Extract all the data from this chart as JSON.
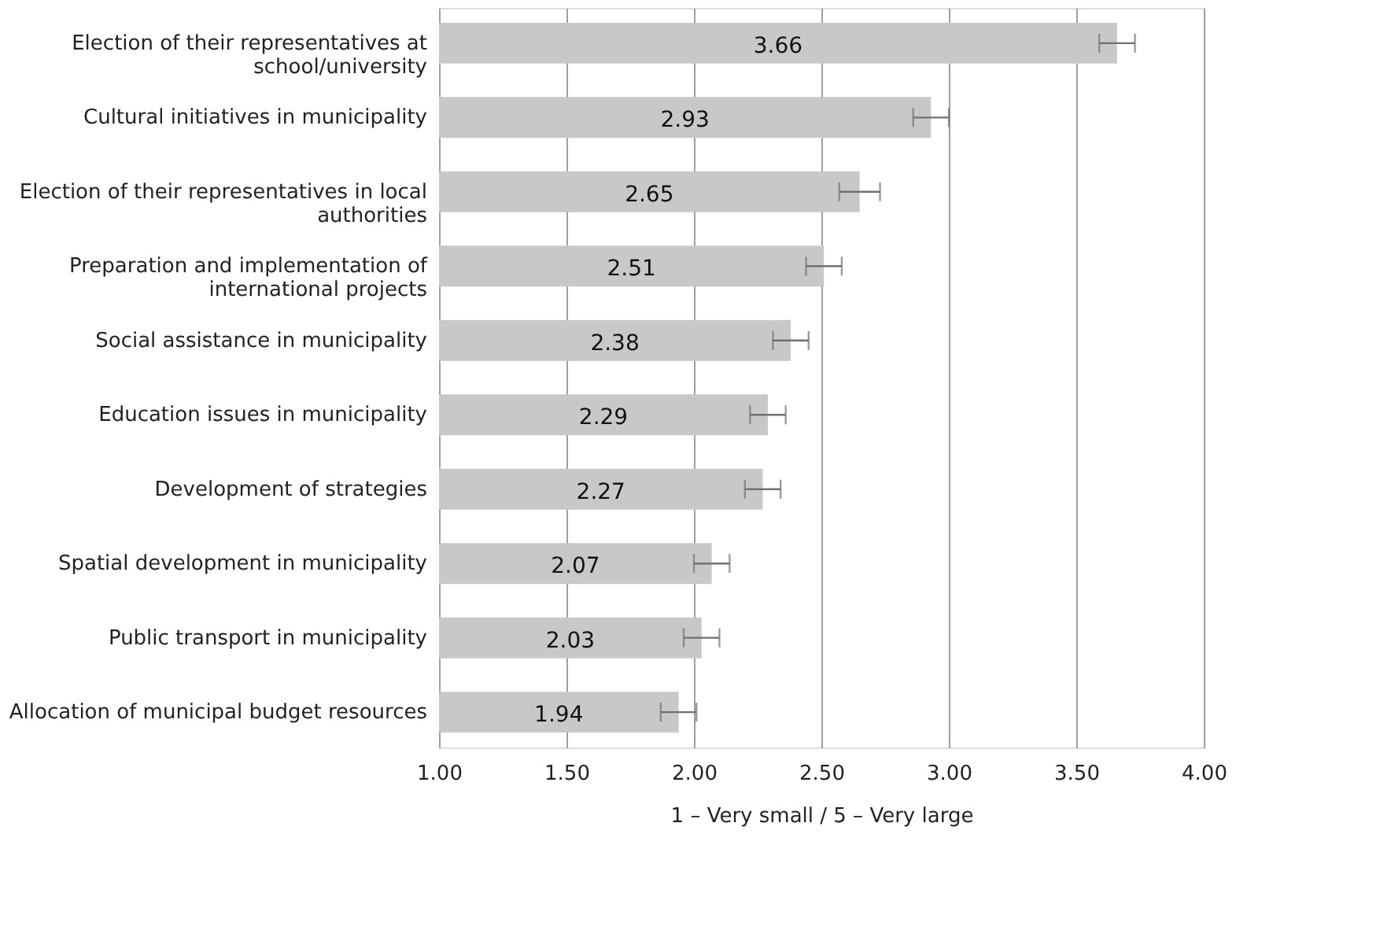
{
  "chart_data": {
    "type": "bar",
    "orientation": "horizontal",
    "xlabel": "1 – Very small / 5 – Very large",
    "categories": [
      "Election of their representatives at school/university",
      "Cultural initiatives in municipality",
      "Election of their representatives in local authorities",
      "Preparation and implementation of international projects",
      "Social assistance in municipality",
      "Education issues in municipality",
      "Development of strategies",
      "Spatial development in municipality",
      "Public transport in municipality",
      "Allocation of municipal budget resources"
    ],
    "values": [
      3.66,
      2.93,
      2.65,
      2.51,
      2.38,
      2.29,
      2.27,
      2.07,
      2.03,
      1.94
    ],
    "errors": [
      0.07,
      0.07,
      0.08,
      0.07,
      0.07,
      0.07,
      0.07,
      0.07,
      0.07,
      0.07
    ],
    "color": "#c8c8c8",
    "data_labels": true,
    "grid": "x",
    "xlim": [
      1.0,
      4.0
    ],
    "xticks": [
      {
        "value": 1.0,
        "label": "1.00"
      },
      {
        "value": 1.5,
        "label": "1.50"
      },
      {
        "value": 2.0,
        "label": "2.00"
      },
      {
        "value": 2.5,
        "label": "2.50"
      },
      {
        "value": 3.0,
        "label": "3.00"
      },
      {
        "value": 3.5,
        "label": "3.50"
      },
      {
        "value": 4.0,
        "label": "4.00"
      }
    ]
  }
}
